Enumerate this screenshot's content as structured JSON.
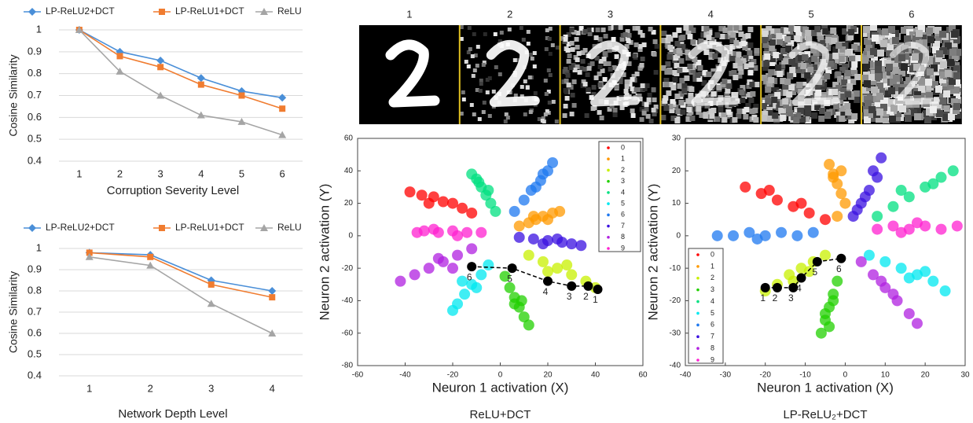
{
  "chart_data": [
    {
      "type": "line",
      "y_label": "Cosine Similarity",
      "x_label": "Corruption Severity Level",
      "legend": "top",
      "grid": true,
      "categories": [
        "1",
        "2",
        "3",
        "4",
        "5",
        "6"
      ],
      "ylim": [
        0.4,
        1
      ],
      "yticks": [
        0.4,
        0.5,
        0.6,
        0.7,
        0.8,
        0.9,
        1
      ],
      "series": [
        {
          "name": "LP-ReLU2+DCT",
          "color": "#4a8fd8",
          "marker": "diamond",
          "values": [
            1,
            0.9,
            0.86,
            0.78,
            0.72,
            0.69
          ]
        },
        {
          "name": "LP-ReLU1+DCT",
          "color": "#f07c30",
          "marker": "square",
          "values": [
            1,
            0.88,
            0.83,
            0.75,
            0.7,
            0.64
          ]
        },
        {
          "name": "ReLU",
          "color": "#a5a5a5",
          "marker": "triangle",
          "values": [
            1,
            0.81,
            0.7,
            0.61,
            0.58,
            0.52
          ]
        }
      ]
    },
    {
      "type": "line",
      "y_label": "Cosine Similarity",
      "x_label": "Network  Depth Level",
      "legend": "top",
      "grid": true,
      "categories": [
        "1",
        "2",
        "3",
        "4"
      ],
      "ylim": [
        0.4,
        1
      ],
      "yticks": [
        0.4,
        0.5,
        0.6,
        0.7,
        0.8,
        0.9,
        1
      ],
      "series": [
        {
          "name": "LP-ReLU2+DCT",
          "color": "#4a8fd8",
          "marker": "diamond",
          "values": [
            0.98,
            0.97,
            0.85,
            0.8
          ]
        },
        {
          "name": "LP-ReLU1+DCT",
          "color": "#f07c30",
          "marker": "square",
          "values": [
            0.98,
            0.96,
            0.83,
            0.77
          ]
        },
        {
          "name": "ReLU",
          "color": "#a5a5a5",
          "marker": "triangle",
          "values": [
            0.96,
            0.92,
            0.74,
            0.6
          ]
        }
      ]
    },
    {
      "type": "scatter",
      "title": "ReLU+DCT",
      "x_label": "Neuron 1 activation (X)",
      "y_label": "Neuron 2 activation (Y)",
      "legend": "top-right",
      "xlim": [
        -60,
        60
      ],
      "xticks": [
        -60,
        -40,
        -20,
        0,
        20,
        40,
        60
      ],
      "ylim": [
        -80,
        60
      ],
      "yticks": [
        -80,
        -60,
        -40,
        -20,
        0,
        20,
        40,
        60
      ],
      "series": [
        {
          "name": "0",
          "color": "#ff0000",
          "x": [
            -38,
            -33,
            -28,
            -24,
            -20,
            -16,
            -12,
            -30
          ],
          "y": [
            27,
            25,
            24,
            21,
            20,
            17,
            14,
            20
          ]
        },
        {
          "name": "1",
          "color": "#ff9900",
          "x": [
            8,
            12,
            15,
            18,
            22,
            25,
            20,
            14
          ],
          "y": [
            6,
            8,
            10,
            12,
            14,
            15,
            10,
            12
          ]
        },
        {
          "name": "2",
          "color": "#c8f000",
          "x": [
            12,
            18,
            24,
            30,
            36,
            40,
            28,
            20
          ],
          "y": [
            -12,
            -16,
            -20,
            -24,
            -28,
            -32,
            -18,
            -22
          ]
        },
        {
          "name": "3",
          "color": "#22d000",
          "x": [
            2,
            4,
            6,
            8,
            10,
            12,
            6,
            9
          ],
          "y": [
            -25,
            -32,
            -38,
            -44,
            -50,
            -55,
            -42,
            -40
          ]
        },
        {
          "name": "4",
          "color": "#00e080",
          "x": [
            -2,
            -4,
            -6,
            -8,
            -10,
            -12,
            -5,
            -9
          ],
          "y": [
            15,
            20,
            25,
            30,
            35,
            38,
            28,
            33
          ]
        },
        {
          "name": "5",
          "color": "#00e8f0",
          "x": [
            -5,
            -8,
            -12,
            -15,
            -18,
            -20,
            -10,
            -16
          ],
          "y": [
            -18,
            -24,
            -30,
            -36,
            -42,
            -46,
            -32,
            -28
          ]
        },
        {
          "name": "6",
          "color": "#1e78f0",
          "x": [
            6,
            10,
            13,
            17,
            20,
            22,
            15,
            18
          ],
          "y": [
            15,
            22,
            28,
            34,
            40,
            45,
            30,
            38
          ]
        },
        {
          "name": "7",
          "color": "#3a10e0",
          "x": [
            8,
            14,
            20,
            26,
            30,
            34,
            18,
            24
          ],
          "y": [
            -1,
            -2,
            -3,
            -4,
            -5,
            -6,
            -5,
            -2
          ]
        },
        {
          "name": "8",
          "color": "#b020e0",
          "x": [
            -12,
            -18,
            -24,
            -30,
            -36,
            -42,
            -26,
            -20
          ],
          "y": [
            -8,
            -12,
            -16,
            -20,
            -24,
            -28,
            -14,
            -20
          ]
        },
        {
          "name": "9",
          "color": "#ff20d0",
          "x": [
            -8,
            -14,
            -20,
            -26,
            -32,
            -35,
            -18,
            -28
          ],
          "y": [
            2,
            2,
            3,
            2,
            3,
            2,
            0,
            4
          ]
        }
      ],
      "trajectory": {
        "x": [
          41,
          37,
          30,
          20,
          5,
          -12
        ],
        "y": [
          -33,
          -31,
          -31,
          -28,
          -20,
          -19
        ],
        "labels": [
          "1",
          "2",
          "3",
          "4",
          "5",
          "6"
        ]
      }
    },
    {
      "type": "scatter",
      "title": "LP-ReLU₂+DCT",
      "x_label": "Neuron 1 activation (X)",
      "y_label": "Neuron 2 activation (Y)",
      "legend": "bottom-left",
      "xlim": [
        -40,
        30
      ],
      "xticks": [
        -40,
        -30,
        -20,
        -10,
        0,
        10,
        20,
        30
      ],
      "ylim": [
        -40,
        30
      ],
      "yticks": [
        -40,
        -30,
        -20,
        -10,
        0,
        10,
        20,
        30
      ],
      "series": [
        {
          "name": "0",
          "color": "#ff0000",
          "x": [
            -25,
            -21,
            -17,
            -13,
            -9,
            -5,
            -19,
            -11
          ],
          "y": [
            15,
            13,
            11,
            9,
            7,
            5,
            14,
            10
          ]
        },
        {
          "name": "1",
          "color": "#ff9900",
          "x": [
            -4,
            -3,
            -2,
            -1,
            0,
            -2,
            -3,
            -1
          ],
          "y": [
            22,
            19,
            16,
            13,
            10,
            6,
            18,
            20
          ]
        },
        {
          "name": "2",
          "color": "#c8f000",
          "x": [
            -20,
            -17,
            -14,
            -11,
            -8,
            -5,
            -13,
            -9
          ],
          "y": [
            -17,
            -15,
            -12,
            -10,
            -8,
            -6,
            -14,
            -11
          ]
        },
        {
          "name": "3",
          "color": "#22d000",
          "x": [
            -6,
            -5,
            -4,
            -3,
            -2,
            -5,
            -3,
            -4
          ],
          "y": [
            -30,
            -26,
            -22,
            -18,
            -14,
            -24,
            -20,
            -28
          ]
        },
        {
          "name": "4",
          "color": "#00e080",
          "x": [
            8,
            12,
            16,
            20,
            24,
            27,
            14,
            22
          ],
          "y": [
            6,
            9,
            12,
            15,
            18,
            20,
            14,
            16
          ]
        },
        {
          "name": "5",
          "color": "#00e8f0",
          "x": [
            6,
            10,
            14,
            18,
            22,
            25,
            16,
            20
          ],
          "y": [
            -6,
            -8,
            -10,
            -12,
            -14,
            -17,
            -13,
            -11
          ]
        },
        {
          "name": "6",
          "color": "#1e78f0",
          "x": [
            -32,
            -28,
            -24,
            -20,
            -16,
            -12,
            -8,
            -22
          ],
          "y": [
            0,
            0,
            1,
            0,
            1,
            0,
            1,
            -1
          ]
        },
        {
          "name": "7",
          "color": "#3a10e0",
          "x": [
            2,
            4,
            6,
            8,
            9,
            5,
            7,
            3
          ],
          "y": [
            6,
            10,
            14,
            18,
            24,
            12,
            20,
            8
          ]
        },
        {
          "name": "8",
          "color": "#b020e0",
          "x": [
            4,
            7,
            10,
            13,
            16,
            18,
            12,
            9
          ],
          "y": [
            -8,
            -12,
            -16,
            -20,
            -24,
            -27,
            -18,
            -14
          ]
        },
        {
          "name": "9",
          "color": "#ff20d0",
          "x": [
            8,
            12,
            16,
            20,
            24,
            28,
            18,
            14
          ],
          "y": [
            2,
            3,
            2,
            3,
            2,
            3,
            4,
            1
          ]
        }
      ],
      "trajectory": {
        "x": [
          -20,
          -17,
          -13,
          -11,
          -7,
          -1
        ],
        "y": [
          -16,
          -16,
          -16,
          -13,
          -8,
          -7
        ],
        "labels": [
          "1",
          "2",
          "3",
          "4",
          "5",
          "6"
        ]
      }
    }
  ],
  "image_strip": {
    "labels": [
      "1",
      "2",
      "3",
      "4",
      "5",
      "6"
    ]
  }
}
